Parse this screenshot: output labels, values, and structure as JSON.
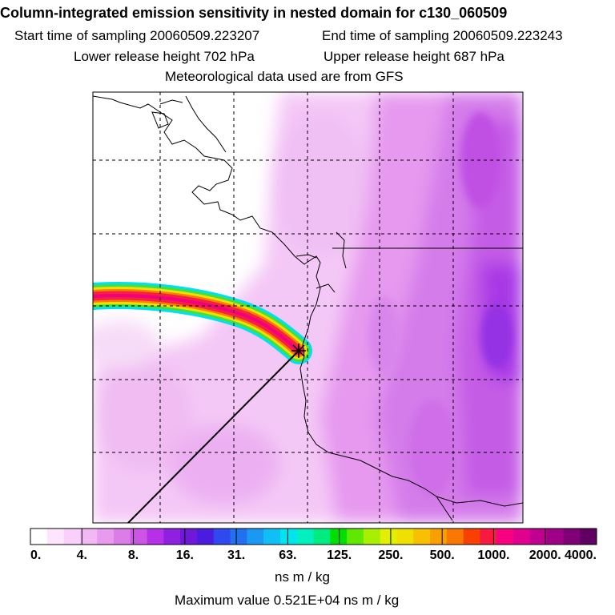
{
  "header": {
    "title": "Column-integrated emission sensitivity in nested domain for c130_060509",
    "start": "Start time of sampling 20060509.223207",
    "end": "End time of sampling 20060509.223243",
    "lower": "Lower release height  702 hPa",
    "upper": "Upper release height  687 hPa",
    "met": "Meteorological data used are from GFS"
  },
  "colorbar": {
    "unit": "ns m / kg",
    "colors": [
      "#ffffff",
      "#fde6fd",
      "#f9d0f9",
      "#f2b8f4",
      "#e89aee",
      "#dc7ce9",
      "#cc55e6",
      "#b630e8",
      "#9020e0",
      "#7018d8",
      "#4a1ce0",
      "#3048f0",
      "#2070f0",
      "#1a98f4",
      "#10c0f4",
      "#00e4f0",
      "#00f0c0",
      "#00ec80",
      "#00e000",
      "#60e800",
      "#a8f000",
      "#e0f000",
      "#f0e000",
      "#f8c000",
      "#f8a000",
      "#f87800",
      "#f84000",
      "#f81840",
      "#f80080",
      "#e00090",
      "#c00090",
      "#a00088",
      "#800078",
      "#600060"
    ],
    "tick_labels": [
      "0.",
      "4.",
      "8.",
      "16.",
      "31.",
      "63.",
      "125.",
      "250.",
      "500.",
      "1000.",
      "2000.",
      "4000."
    ]
  },
  "footer": {
    "max": "Maximum value  0.521E+04 ns m / kg"
  },
  "chart_data": {
    "type": "heatmap",
    "title": "Column-integrated emission sensitivity in nested domain for c130_060509",
    "colorbar_levels": [
      0,
      4,
      8,
      16,
      31,
      63,
      125,
      250,
      500,
      1000,
      2000,
      4000
    ],
    "colorbar_unit": "ns m / kg",
    "maximum_value": "0.521E+04 ns m / kg",
    "grid": true
  }
}
